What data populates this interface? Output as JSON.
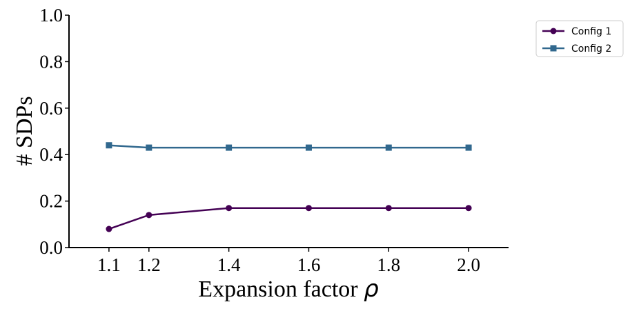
{
  "chart_data": {
    "type": "line",
    "title": "",
    "xlabel": "Expansion factor",
    "xlabel_symbol": "ρ",
    "ylabel": "# SDPs",
    "x": [
      1.1,
      1.2,
      1.4,
      1.6,
      1.8,
      2.0
    ],
    "xticks": [
      "1.1",
      "1.2",
      "1.4",
      "1.6",
      "1.8",
      "2.0"
    ],
    "yticks": [
      "0.0",
      "0.2",
      "0.4",
      "0.6",
      "0.8",
      "1.0"
    ],
    "xlim": [
      1.0,
      2.1
    ],
    "ylim": [
      0.0,
      1.0
    ],
    "grid": false,
    "legend_position": "outside-top-right",
    "series": [
      {
        "name": "Config 1",
        "marker": "circle",
        "color": "#440154",
        "values": [
          0.08,
          0.14,
          0.17,
          0.17,
          0.17,
          0.17
        ]
      },
      {
        "name": "Config 2",
        "marker": "square",
        "color": "#31688e",
        "values": [
          0.44,
          0.43,
          0.43,
          0.43,
          0.43,
          0.43
        ]
      }
    ]
  }
}
